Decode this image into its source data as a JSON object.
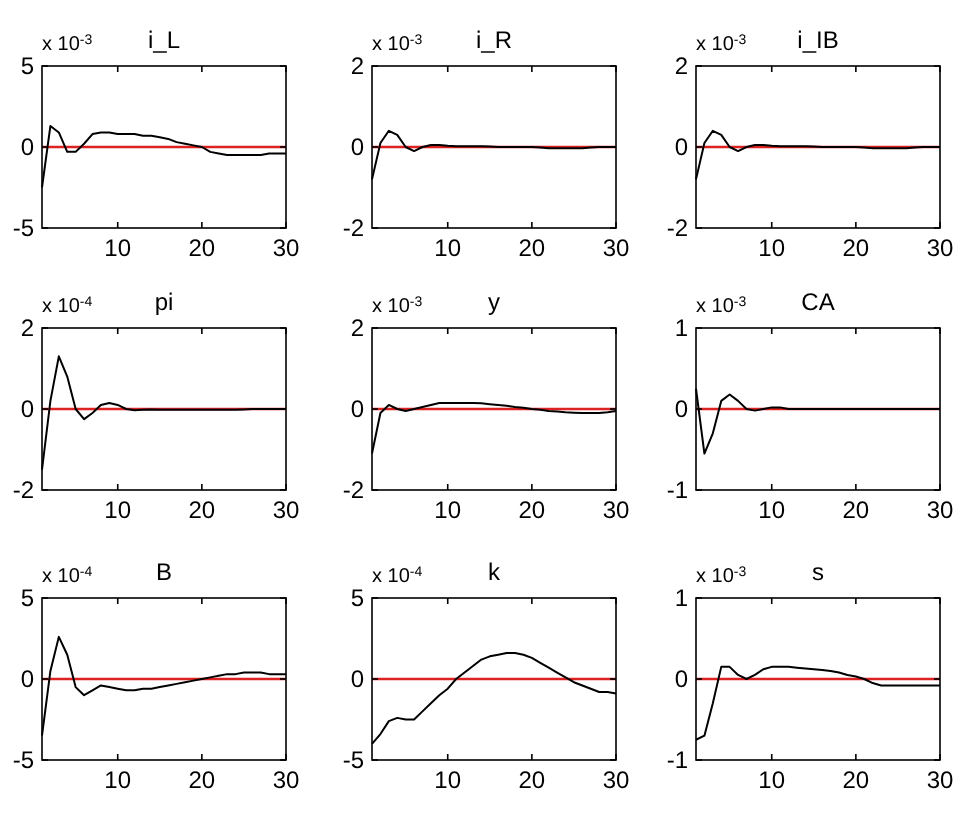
{
  "chart_data": [
    {
      "type": "line",
      "title": "i_L",
      "annotations": [
        "x 10$^{-3}$"
      ],
      "xlim": [
        1,
        30
      ],
      "xticks": [
        10,
        20,
        30
      ],
      "ylim": [
        -5,
        5
      ],
      "yticks": [
        -5,
        0,
        5
      ],
      "ref_lines": [
        {
          "axis": "y",
          "value": 0,
          "color": "#dd2222"
        }
      ],
      "x": [
        1,
        2,
        3,
        4,
        5,
        6,
        7,
        8,
        9,
        10,
        11,
        12,
        13,
        14,
        15,
        16,
        17,
        18,
        19,
        20,
        21,
        22,
        23,
        24,
        25,
        26,
        27,
        28,
        29,
        30
      ],
      "series": [
        {
          "color": "#000000",
          "values": [
            -2.5,
            1.3,
            0.9,
            -0.3,
            -0.3,
            0.2,
            0.8,
            0.9,
            0.9,
            0.8,
            0.8,
            0.8,
            0.7,
            0.7,
            0.6,
            0.5,
            0.3,
            0.2,
            0.1,
            0,
            -0.3,
            -0.4,
            -0.5,
            -0.5,
            -0.5,
            -0.5,
            -0.5,
            -0.4,
            -0.4,
            -0.4
          ]
        }
      ]
    },
    {
      "type": "line",
      "title": "i_R",
      "annotations": [
        "x 10$^{-3}$"
      ],
      "xlim": [
        1,
        30
      ],
      "xticks": [
        10,
        20,
        30
      ],
      "ylim": [
        -2,
        2
      ],
      "yticks": [
        -2,
        0,
        2
      ],
      "ref_lines": [
        {
          "axis": "y",
          "value": 0,
          "color": "#dd2222"
        }
      ],
      "x": [
        1,
        2,
        3,
        4,
        5,
        6,
        7,
        8,
        9,
        10,
        11,
        12,
        13,
        14,
        15,
        16,
        17,
        18,
        19,
        20,
        21,
        22,
        23,
        24,
        25,
        26,
        27,
        28,
        29,
        30
      ],
      "series": [
        {
          "color": "#000000",
          "values": [
            -0.8,
            0.1,
            0.4,
            0.3,
            0,
            -0.1,
            0,
            0.05,
            0.05,
            0.03,
            0.02,
            0.02,
            0.02,
            0.02,
            0.01,
            0,
            0,
            0,
            0,
            0,
            -0.01,
            -0.03,
            -0.03,
            -0.03,
            -0.03,
            -0.03,
            -0.01,
            0,
            0,
            0
          ]
        }
      ]
    },
    {
      "type": "line",
      "title": "i_IB",
      "annotations": [
        "x 10$^{-3}$"
      ],
      "xlim": [
        1,
        30
      ],
      "xticks": [
        10,
        20,
        30
      ],
      "ylim": [
        -2,
        2
      ],
      "yticks": [
        -2,
        0,
        2
      ],
      "ref_lines": [
        {
          "axis": "y",
          "value": 0,
          "color": "#dd2222"
        }
      ],
      "x": [
        1,
        2,
        3,
        4,
        5,
        6,
        7,
        8,
        9,
        10,
        11,
        12,
        13,
        14,
        15,
        16,
        17,
        18,
        19,
        20,
        21,
        22,
        23,
        24,
        25,
        26,
        27,
        28,
        29,
        30
      ],
      "series": [
        {
          "color": "#000000",
          "values": [
            -0.8,
            0.1,
            0.4,
            0.3,
            0,
            -0.1,
            0,
            0.05,
            0.05,
            0.03,
            0.02,
            0.02,
            0.02,
            0.02,
            0.01,
            0,
            0,
            0,
            0,
            0,
            -0.01,
            -0.03,
            -0.03,
            -0.03,
            -0.03,
            -0.03,
            -0.01,
            0,
            0,
            0
          ]
        }
      ]
    },
    {
      "type": "line",
      "title": "pi",
      "annotations": [
        "x 10$^{-4}$"
      ],
      "xlim": [
        1,
        30
      ],
      "xticks": [
        10,
        20,
        30
      ],
      "ylim": [
        -2,
        2
      ],
      "yticks": [
        -2,
        0,
        2
      ],
      "ref_lines": [
        {
          "axis": "y",
          "value": 0,
          "color": "#dd2222"
        }
      ],
      "x": [
        1,
        2,
        3,
        4,
        5,
        6,
        7,
        8,
        9,
        10,
        11,
        12,
        13,
        14,
        15,
        16,
        17,
        18,
        19,
        20,
        21,
        22,
        23,
        24,
        25,
        26,
        27,
        28,
        29,
        30
      ],
      "series": [
        {
          "color": "#000000",
          "values": [
            -1.5,
            0.2,
            1.3,
            0.8,
            0,
            -0.25,
            -0.1,
            0.1,
            0.15,
            0.1,
            0,
            -0.03,
            -0.02,
            -0.01,
            -0.02,
            -0.02,
            -0.02,
            -0.02,
            -0.02,
            -0.02,
            -0.02,
            -0.02,
            -0.02,
            -0.02,
            -0.01,
            0,
            0,
            0,
            0,
            0
          ]
        }
      ]
    },
    {
      "type": "line",
      "title": "y",
      "annotations": [
        "x 10$^{-3}$"
      ],
      "xlim": [
        1,
        30
      ],
      "xticks": [
        10,
        20,
        30
      ],
      "ylim": [
        -2,
        2
      ],
      "yticks": [
        -2,
        0,
        2
      ],
      "ref_lines": [
        {
          "axis": "y",
          "value": 0,
          "color": "#dd2222"
        }
      ],
      "x": [
        1,
        2,
        3,
        4,
        5,
        6,
        7,
        8,
        9,
        10,
        11,
        12,
        13,
        14,
        15,
        16,
        17,
        18,
        19,
        20,
        21,
        22,
        23,
        24,
        25,
        26,
        27,
        28,
        29,
        30
      ],
      "series": [
        {
          "color": "#000000",
          "values": [
            -1.1,
            -0.1,
            0.1,
            0,
            -0.05,
            0,
            0.05,
            0.1,
            0.15,
            0.15,
            0.15,
            0.15,
            0.15,
            0.14,
            0.12,
            0.1,
            0.08,
            0.05,
            0.03,
            0,
            -0.02,
            -0.05,
            -0.06,
            -0.08,
            -0.09,
            -0.1,
            -0.1,
            -0.1,
            -0.08,
            -0.05
          ]
        }
      ]
    },
    {
      "type": "line",
      "title": "CA",
      "annotations": [
        "x 10$^{-3}$"
      ],
      "xlim": [
        1,
        30
      ],
      "xticks": [
        10,
        20,
        30
      ],
      "ylim": [
        -1,
        1
      ],
      "yticks": [
        -1,
        0,
        1
      ],
      "ref_lines": [
        {
          "axis": "y",
          "value": 0,
          "color": "#dd2222"
        }
      ],
      "x": [
        1,
        2,
        3,
        4,
        5,
        6,
        7,
        8,
        9,
        10,
        11,
        12,
        13,
        14,
        15,
        16,
        17,
        18,
        19,
        20,
        21,
        22,
        23,
        24,
        25,
        26,
        27,
        28,
        29,
        30
      ],
      "series": [
        {
          "color": "#000000",
          "values": [
            0.25,
            -0.55,
            -0.3,
            0.1,
            0.18,
            0.1,
            0,
            -0.02,
            0,
            0.02,
            0.02,
            0,
            0,
            0,
            0,
            0,
            0,
            0,
            0,
            0,
            0,
            0,
            0,
            0,
            0,
            0,
            0,
            0,
            0,
            0
          ]
        }
      ]
    },
    {
      "type": "line",
      "title": "B",
      "annotations": [
        "x 10$^{-4}$"
      ],
      "xlim": [
        1,
        30
      ],
      "xticks": [
        10,
        20,
        30
      ],
      "ylim": [
        -5,
        5
      ],
      "yticks": [
        -5,
        0,
        5
      ],
      "ref_lines": [
        {
          "axis": "y",
          "value": 0,
          "color": "#dd2222"
        }
      ],
      "x": [
        1,
        2,
        3,
        4,
        5,
        6,
        7,
        8,
        9,
        10,
        11,
        12,
        13,
        14,
        15,
        16,
        17,
        18,
        19,
        20,
        21,
        22,
        23,
        24,
        25,
        26,
        27,
        28,
        29,
        30
      ],
      "series": [
        {
          "color": "#000000",
          "values": [
            -3.5,
            0.5,
            2.6,
            1.5,
            -0.5,
            -1,
            -0.7,
            -0.4,
            -0.5,
            -0.6,
            -0.7,
            -0.7,
            -0.6,
            -0.6,
            -0.5,
            -0.4,
            -0.3,
            -0.2,
            -0.1,
            0,
            0.1,
            0.2,
            0.3,
            0.3,
            0.4,
            0.4,
            0.4,
            0.3,
            0.3,
            0.3
          ]
        }
      ]
    },
    {
      "type": "line",
      "title": "k",
      "annotations": [
        "x 10$^{-4}$"
      ],
      "xlim": [
        1,
        30
      ],
      "xticks": [
        10,
        20,
        30
      ],
      "ylim": [
        -5,
        5
      ],
      "yticks": [
        -5,
        0,
        5
      ],
      "ref_lines": [
        {
          "axis": "y",
          "value": 0,
          "color": "#dd2222"
        }
      ],
      "x": [
        1,
        2,
        3,
        4,
        5,
        6,
        7,
        8,
        9,
        10,
        11,
        12,
        13,
        14,
        15,
        16,
        17,
        18,
        19,
        20,
        21,
        22,
        23,
        24,
        25,
        26,
        27,
        28,
        29,
        30
      ],
      "series": [
        {
          "color": "#000000",
          "values": [
            -4,
            -3.4,
            -2.6,
            -2.4,
            -2.5,
            -2.5,
            -2,
            -1.5,
            -1,
            -0.6,
            0,
            0.4,
            0.8,
            1.2,
            1.4,
            1.5,
            1.6,
            1.6,
            1.5,
            1.3,
            1,
            0.7,
            0.4,
            0.1,
            -0.2,
            -0.4,
            -0.6,
            -0.8,
            -0.8,
            -0.9
          ]
        }
      ]
    },
    {
      "type": "line",
      "title": "s",
      "annotations": [
        "x 10$^{-3}$"
      ],
      "xlim": [
        1,
        30
      ],
      "xticks": [
        10,
        20,
        30
      ],
      "ylim": [
        -1,
        1
      ],
      "yticks": [
        -1,
        0,
        1
      ],
      "ref_lines": [
        {
          "axis": "y",
          "value": 0,
          "color": "#dd2222"
        }
      ],
      "x": [
        1,
        2,
        3,
        4,
        5,
        6,
        7,
        8,
        9,
        10,
        11,
        12,
        13,
        14,
        15,
        16,
        17,
        18,
        19,
        20,
        21,
        22,
        23,
        24,
        25,
        26,
        27,
        28,
        29,
        30
      ],
      "series": [
        {
          "color": "#000000",
          "values": [
            -0.75,
            -0.7,
            -0.3,
            0.15,
            0.15,
            0.05,
            0,
            0.05,
            0.12,
            0.15,
            0.15,
            0.15,
            0.14,
            0.13,
            0.12,
            0.11,
            0.1,
            0.08,
            0.05,
            0.03,
            0,
            -0.05,
            -0.08,
            -0.08,
            -0.08,
            -0.08,
            -0.08,
            -0.08,
            -0.08,
            -0.08
          ]
        }
      ]
    }
  ]
}
